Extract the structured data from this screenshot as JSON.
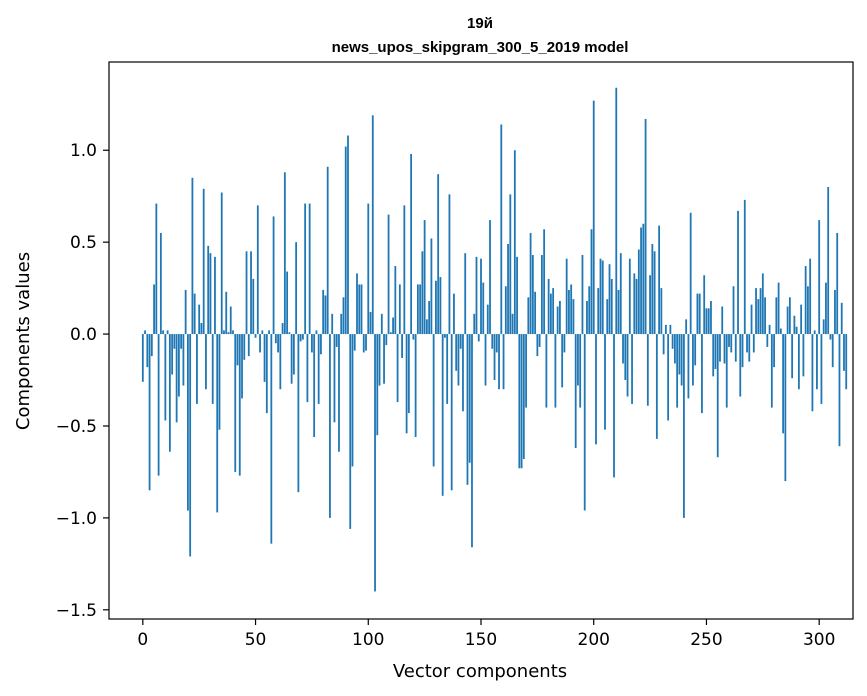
{
  "chart_data": {
    "type": "bar",
    "title": "19й",
    "subtitle": "news_upos_skipgram_300_5_2019 model",
    "xlabel": "Vector components",
    "ylabel": "Components values",
    "xlim": [
      -15,
      315
    ],
    "ylim": [
      -1.55,
      1.48
    ],
    "x_ticks": [
      0,
      50,
      100,
      150,
      200,
      250,
      300
    ],
    "x_tick_labels": [
      "0",
      "50",
      "100",
      "150",
      "200",
      "250",
      "300"
    ],
    "y_ticks": [
      -1.5,
      -1.0,
      -0.5,
      0.0,
      0.5,
      1.0
    ],
    "y_tick_labels": [
      "−1.5",
      "−1.0",
      "−0.5",
      "0.0",
      "0.5",
      "1.0"
    ],
    "grid": false,
    "bar_color": "#1f77b4",
    "values": [
      -0.26,
      0.02,
      -0.18,
      -0.85,
      -0.12,
      0.27,
      0.71,
      -0.77,
      0.55,
      0.02,
      -0.47,
      0.02,
      -0.64,
      -0.22,
      -0.08,
      -0.48,
      -0.34,
      -0.08,
      -0.28,
      0.24,
      -0.96,
      -1.21,
      0.85,
      0.22,
      -0.38,
      0.16,
      0.06,
      0.79,
      -0.3,
      0.48,
      0.44,
      -0.38,
      0.42,
      -0.97,
      -0.52,
      0.77,
      0.02,
      0.23,
      0.01,
      0.15,
      0.02,
      -0.75,
      -0.17,
      -0.77,
      -0.35,
      -0.14,
      0.45,
      -0.12,
      0.45,
      0.3,
      -0.02,
      0.7,
      -0.1,
      0.02,
      -0.26,
      -0.43,
      0.02,
      -1.14,
      0.64,
      -0.05,
      -0.1,
      -0.3,
      0.06,
      0.88,
      0.34,
      0.01,
      -0.27,
      -0.22,
      0.5,
      -0.86,
      -0.04,
      -0.03,
      0.71,
      -0.37,
      0.71,
      -0.1,
      -0.56,
      0.02,
      -0.38,
      -0.11,
      0.24,
      0.21,
      0.91,
      -1.0,
      0.11,
      -0.48,
      -0.07,
      -0.64,
      0.11,
      0.2,
      1.02,
      1.08,
      -1.06,
      -0.72,
      -0.09,
      0.33,
      0.27,
      0.27,
      -0.1,
      -0.09,
      0.71,
      0.12,
      1.19,
      -1.4,
      -0.55,
      -0.28,
      0.11,
      -0.27,
      -0.06,
      0.65,
      0.01,
      0.09,
      0.37,
      -0.37,
      0.27,
      -0.13,
      0.7,
      -0.54,
      -0.43,
      0.98,
      -0.03,
      -0.56,
      0.27,
      0.27,
      0.45,
      0.62,
      0.08,
      0.18,
      0.52,
      -0.72,
      0.29,
      0.87,
      0.31,
      -0.88,
      -0.02,
      -0.38,
      0.76,
      -0.85,
      0.22,
      -0.2,
      -0.28,
      -0.08,
      -0.42,
      0.44,
      -0.82,
      -0.7,
      -1.16,
      0.11,
      0.42,
      -0.04,
      0.41,
      0.28,
      -0.28,
      0.16,
      0.62,
      -0.08,
      -0.25,
      -0.1,
      -0.3,
      1.14,
      -0.3,
      0.26,
      0.49,
      0.76,
      0.11,
      1.0,
      0.42,
      -0.73,
      -0.73,
      -0.68,
      -0.4,
      0.2,
      0.55,
      0.43,
      0.23,
      -0.12,
      -0.07,
      0.43,
      0.57,
      -0.4,
      0.3,
      0.22,
      0.25,
      -0.4,
      0.15,
      0.18,
      -0.29,
      -0.1,
      0.41,
      0.24,
      0.27,
      0.19,
      -0.62,
      -0.28,
      -0.4,
      0.43,
      -0.96,
      0.18,
      0.26,
      0.57,
      1.27,
      -0.6,
      0.25,
      0.41,
      0.4,
      -0.52,
      0.19,
      0.38,
      0.3,
      -0.78,
      1.34,
      0.24,
      0.44,
      -0.16,
      -0.25,
      -0.34,
      0.41,
      -0.38,
      0.33,
      0.3,
      0.46,
      0.58,
      0.6,
      1.17,
      -0.39,
      0.32,
      0.49,
      0.45,
      -0.57,
      0.59,
      0.25,
      -0.11,
      0.05,
      -0.47,
      0.05,
      -0.08,
      -0.16,
      -0.4,
      -0.22,
      -0.28,
      -1.0,
      0.08,
      -0.35,
      0.66,
      -0.28,
      -0.17,
      0.22,
      0.22,
      -0.43,
      0.32,
      0.14,
      0.14,
      0.18,
      -0.23,
      -0.19,
      -0.67,
      -0.15,
      0.15,
      -0.16,
      -0.4,
      -0.07,
      -0.1,
      0.26,
      -0.15,
      0.67,
      -0.34,
      -0.18,
      0.73,
      -0.1,
      -0.15,
      0.16,
      -0.1,
      0.25,
      0.19,
      0.25,
      0.33,
      0.2,
      -0.07,
      0.05,
      -0.4,
      -0.18,
      0.2,
      0.28,
      0.03,
      -0.54,
      -0.8,
      0.15,
      0.2,
      -0.24,
      0.1,
      0.04,
      -0.3,
      0.16,
      -0.23,
      0.37,
      0.26,
      0.41,
      -0.42,
      0.02,
      -0.3,
      0.62,
      -0.38,
      0.08,
      0.28,
      0.8,
      -0.03,
      -0.18,
      0.24,
      0.55,
      -0.61,
      0.17,
      -0.2,
      -0.3
    ]
  }
}
